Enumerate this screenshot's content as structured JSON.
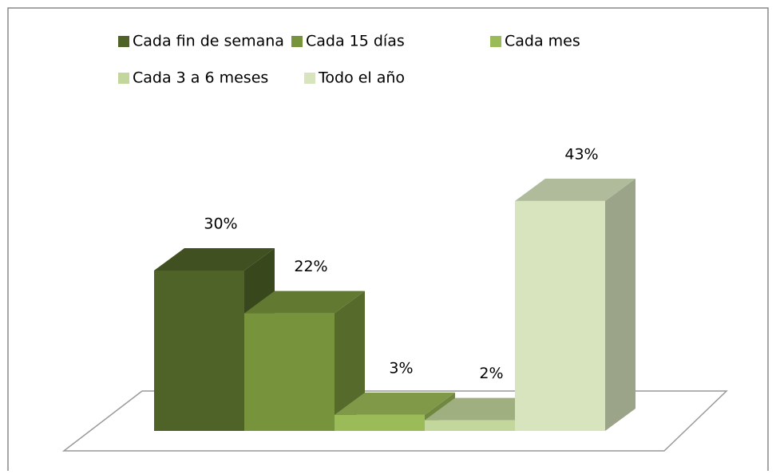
{
  "chart_data": {
    "type": "bar3d",
    "categories": [
      null
    ],
    "series": [
      {
        "name": "Cada fin de semana",
        "color": "#4f6228",
        "values": [
          30
        ],
        "value_labels": [
          "30%"
        ]
      },
      {
        "name": "Cada 15 días",
        "color": "#77933c",
        "values": [
          22
        ],
        "value_labels": [
          "22%"
        ]
      },
      {
        "name": "Cada mes",
        "color": "#9bbb59",
        "values": [
          3
        ],
        "value_labels": [
          "3%"
        ]
      },
      {
        "name": "Cada 3 a 6 meses",
        "color": "#c3d69b",
        "values": [
          2
        ],
        "value_labels": [
          "2%"
        ]
      },
      {
        "name": "Todo el año",
        "color": "#d7e4bd",
        "values": [
          43
        ],
        "value_labels": [
          "43%"
        ]
      }
    ]
  }
}
